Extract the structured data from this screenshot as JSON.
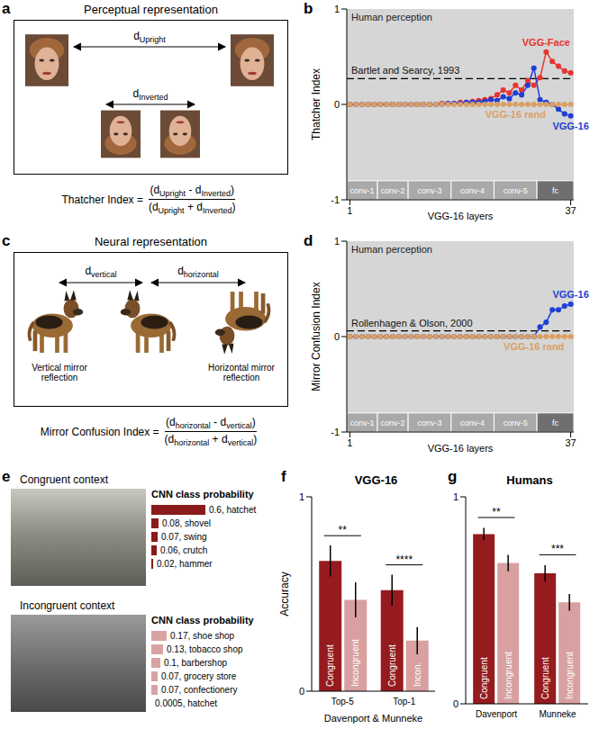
{
  "panel_a": {
    "panel": "a",
    "title": "Perceptual representation",
    "top_distance": {
      "base": "d",
      "sub": "Upright"
    },
    "bottom_distance": {
      "base": "d",
      "sub": "Inverted"
    },
    "formula": {
      "name": "Thatcher Index =",
      "numerator": [
        {
          "text": "(d"
        },
        {
          "sub": "Upright"
        },
        {
          "text": " - d"
        },
        {
          "sub": "Inverted"
        },
        {
          "text": ")"
        }
      ],
      "denominator": [
        {
          "text": "(d"
        },
        {
          "sub": "Upright"
        },
        {
          "text": " + d"
        },
        {
          "sub": "Inverted"
        },
        {
          "text": ")"
        }
      ]
    }
  },
  "panel_c": {
    "panel": "c",
    "title": "Neural representation",
    "left_distance": {
      "base": "d",
      "sub": "vertical"
    },
    "right_distance": {
      "base": "d",
      "sub": "horizontal"
    },
    "left_caption": [
      "Vertical mirror",
      "reflection"
    ],
    "right_caption": [
      "Horizontal mirror",
      "reflection"
    ],
    "formula": {
      "name": "Mirror Confusion Index =",
      "numerator": [
        {
          "text": "(d"
        },
        {
          "sub": "horizontal"
        },
        {
          "text": " - d"
        },
        {
          "sub": "vertical"
        },
        {
          "text": ")"
        }
      ],
      "denominator": [
        {
          "text": "(d"
        },
        {
          "sub": "horizontal"
        },
        {
          "text": " + d"
        },
        {
          "sub": "vertical"
        },
        {
          "text": ")"
        }
      ]
    }
  },
  "panel_e": {
    "panel": "e",
    "rows": [
      {
        "caption": "Congruent context",
        "header": "CNN class probability",
        "color": "#8b1a1a",
        "items": [
          {
            "value": 0.6,
            "text": "0.6, hatchet"
          },
          {
            "value": 0.08,
            "text": "0.08, shovel"
          },
          {
            "value": 0.07,
            "text": "0.07, swing"
          },
          {
            "value": 0.06,
            "text": "0.06, crutch"
          },
          {
            "value": 0.02,
            "text": "0.02, hammer"
          }
        ]
      },
      {
        "caption": "Incongruent context",
        "header": "CNN class probability",
        "color": "#d9a3a3",
        "items": [
          {
            "value": 0.17,
            "text": "0.17, shoe shop"
          },
          {
            "value": 0.13,
            "text": "0.13, tobacco shop"
          },
          {
            "value": 0.1,
            "text": "0.1, barbershop"
          },
          {
            "value": 0.07,
            "text": "0.07, grocery store"
          },
          {
            "value": 0.07,
            "text": "0.07, confectionery"
          },
          {
            "value": 0.0005,
            "text": "0.0005, hatchet"
          }
        ]
      }
    ]
  },
  "chart_data": [
    {
      "panel": "b",
      "type": "line",
      "x": [
        1,
        2,
        3,
        4,
        5,
        6,
        7,
        8,
        9,
        10,
        11,
        12,
        13,
        14,
        15,
        16,
        17,
        18,
        19,
        20,
        21,
        22,
        23,
        24,
        25,
        26,
        27,
        28,
        29,
        30,
        31,
        32,
        33,
        34,
        35,
        36,
        37
      ],
      "xlim": [
        0.5,
        37.5
      ],
      "xticks": [
        1,
        37
      ],
      "x_label": "VGG-16 layers",
      "ylim": [
        -1,
        1
      ],
      "yticks": [
        -1,
        0,
        1
      ],
      "y_label": "Thatcher Index",
      "marker": "circle",
      "region": {
        "label": "Human perception",
        "range": [
          -1,
          1
        ]
      },
      "reference": {
        "label": "Bartlet and Searcy, 1993",
        "value": 0.27
      },
      "layer_groups": [
        {
          "label": "conv-1",
          "range": [
            0.5,
            5.5
          ]
        },
        {
          "label": "conv-2",
          "range": [
            5.5,
            10.5
          ]
        },
        {
          "label": "conv-3",
          "range": [
            10.5,
            17.5
          ]
        },
        {
          "label": "conv-4",
          "range": [
            17.5,
            24.5
          ]
        },
        {
          "label": "conv-5",
          "range": [
            24.5,
            31.5
          ]
        },
        {
          "label": "fc",
          "range": [
            31.5,
            37.5
          ]
        }
      ],
      "series": [
        {
          "name": "VGG-Face",
          "color": "#e8342f",
          "values": [
            0,
            0,
            0,
            0,
            0,
            0,
            0,
            0,
            0,
            0,
            0,
            0,
            0,
            0,
            0,
            0.01,
            0.01,
            0.01,
            0.02,
            0.02,
            0.03,
            0.04,
            0.05,
            0.06,
            0.1,
            0.15,
            0.12,
            0.2,
            0.15,
            0.25,
            0.2,
            0.28,
            0.55,
            0.45,
            0.4,
            0.35,
            0.33
          ]
        },
        {
          "name": "VGG-16",
          "color": "#1f3fd6",
          "values": [
            0,
            0,
            0,
            0,
            0,
            0,
            0,
            0,
            0,
            0,
            0,
            0,
            0,
            0,
            0,
            0,
            0.01,
            0.01,
            0.01,
            0.02,
            0.02,
            0.02,
            0.03,
            0.05,
            0.04,
            0.08,
            0.06,
            0.12,
            0.1,
            0.2,
            0.38,
            0.05,
            0.02,
            0,
            -0.05,
            -0.1,
            -0.12
          ]
        },
        {
          "name": "VGG-16 rand",
          "color": "#d9a066",
          "values": [
            0,
            0,
            0,
            0,
            0,
            0,
            0,
            0,
            0,
            0,
            0,
            0,
            0,
            0,
            0,
            0,
            0,
            0,
            0,
            0,
            0,
            0,
            0,
            0,
            0,
            0,
            0,
            0,
            0,
            0,
            0,
            0,
            0,
            0,
            0,
            0,
            0
          ]
        }
      ]
    },
    {
      "panel": "d",
      "type": "line",
      "x": [
        1,
        2,
        3,
        4,
        5,
        6,
        7,
        8,
        9,
        10,
        11,
        12,
        13,
        14,
        15,
        16,
        17,
        18,
        19,
        20,
        21,
        22,
        23,
        24,
        25,
        26,
        27,
        28,
        29,
        30,
        31,
        32,
        33,
        34,
        35,
        36,
        37
      ],
      "xlim": [
        0.5,
        37.5
      ],
      "xticks": [
        1,
        37
      ],
      "x_label": "VGG-16 layers",
      "ylim": [
        -1,
        1
      ],
      "yticks": [
        -1,
        0,
        1
      ],
      "y_label": "Mirror Confusion Index",
      "marker": "circle",
      "region": {
        "label": "Human perception",
        "range": [
          -1,
          1
        ]
      },
      "reference": {
        "label": "Rollenhagen & Olson, 2000",
        "value": 0.06
      },
      "layer_groups": [
        {
          "label": "conv-1",
          "range": [
            0.5,
            5.5
          ]
        },
        {
          "label": "conv-2",
          "range": [
            5.5,
            10.5
          ]
        },
        {
          "label": "conv-3",
          "range": [
            10.5,
            17.5
          ]
        },
        {
          "label": "conv-4",
          "range": [
            17.5,
            24.5
          ]
        },
        {
          "label": "conv-5",
          "range": [
            24.5,
            31.5
          ]
        },
        {
          "label": "fc",
          "range": [
            31.5,
            37.5
          ]
        }
      ],
      "series": [
        {
          "name": "VGG-16",
          "color": "#1f3fd6",
          "values": [
            0,
            0,
            0,
            0,
            0,
            0,
            0,
            0,
            0,
            0,
            0,
            0,
            0,
            0,
            0,
            0,
            0,
            0,
            0,
            0,
            0,
            0,
            0,
            0,
            0,
            0,
            0,
            0,
            0,
            0,
            0,
            0.1,
            0.15,
            0.28,
            0.28,
            0.32,
            0.34
          ]
        },
        {
          "name": "VGG-16 rand",
          "color": "#d9a066",
          "values": [
            0,
            0,
            0,
            0,
            0,
            0,
            0,
            0,
            0,
            0,
            0,
            0,
            0,
            0,
            0,
            0,
            0,
            0,
            0,
            0,
            0,
            0,
            0,
            0,
            0,
            0,
            0,
            0,
            0,
            0,
            0,
            0,
            0,
            0,
            0,
            0,
            0
          ]
        }
      ]
    },
    {
      "panel": "f",
      "type": "bar",
      "title": "VGG-16",
      "categories": [
        "Top-5",
        "Top-1"
      ],
      "x_label": "Davenport & Munneke",
      "y_label": "Accuracy",
      "ylim": [
        0,
        1
      ],
      "yticks": [
        0,
        1
      ],
      "significance": [
        "**",
        "****"
      ],
      "series": [
        {
          "name": "Congruent",
          "color": "#951b1e",
          "values": [
            0.67,
            0.52
          ],
          "errors": [
            0.08,
            0.08
          ],
          "labels": [
            "Congruent",
            "Congruent"
          ]
        },
        {
          "name": "Incongruent",
          "color": "#d8a0a0",
          "values": [
            0.47,
            0.26
          ],
          "errors": [
            0.09,
            0.07
          ],
          "labels": [
            "Incongruent",
            "Incon."
          ]
        }
      ]
    },
    {
      "panel": "g",
      "type": "bar",
      "title": "Humans",
      "categories": [
        "Davenport",
        "Munneke"
      ],
      "ylim": [
        0,
        1
      ],
      "yticks": [
        0,
        1
      ],
      "significance": [
        "**",
        "***"
      ],
      "series": [
        {
          "name": "Congruent",
          "color": "#951b1e",
          "values": [
            0.82,
            0.63
          ],
          "errors": [
            0.03,
            0.04
          ],
          "labels": [
            "Congruent",
            "Congruent"
          ]
        },
        {
          "name": "Incongruent",
          "color": "#d8a0a0",
          "values": [
            0.68,
            0.49
          ],
          "errors": [
            0.04,
            0.04
          ],
          "labels": [
            "Incongruent",
            "Incongruent"
          ]
        }
      ]
    }
  ]
}
